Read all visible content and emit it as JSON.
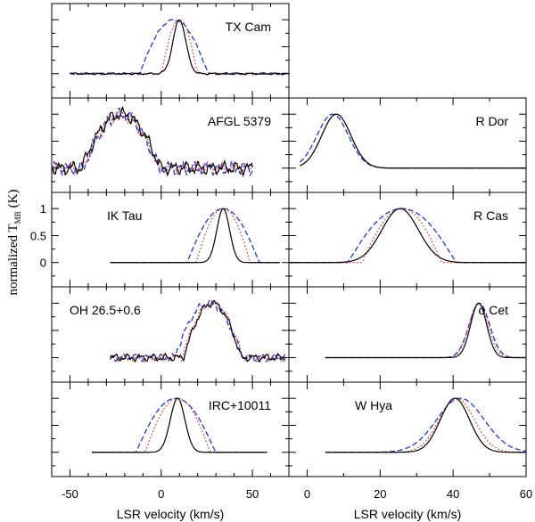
{
  "chart_data": {
    "type": "line",
    "y_axis_title": "normalized T",
    "y_axis_subscript": "MB",
    "y_axis_unit": "(K)",
    "columns": [
      {
        "name": "left",
        "xlabel": "LSR velocity (km/s)",
        "xlim": [
          -60,
          70
        ],
        "xticks_major": [
          -50,
          0,
          50
        ],
        "xticks_minor": [
          -40,
          -30,
          -20,
          -10,
          10,
          20,
          30,
          40,
          60
        ],
        "xtick_labels": [
          "-50",
          "0",
          "50"
        ]
      },
      {
        "name": "right",
        "xlabel": "LSR velocity (km/s)",
        "xlim": [
          -5,
          60
        ],
        "xticks_major": [
          0,
          20,
          40,
          60
        ],
        "xticks_minor": [
          10,
          30,
          50
        ],
        "xtick_labels": [
          "0",
          "20",
          "40",
          "60"
        ]
      }
    ],
    "ylim": [
      -0.45,
      1.3
    ],
    "yticks": [
      0,
      0.5,
      1
    ],
    "ytick_labels": [
      "0",
      "0.5",
      "1"
    ],
    "series_styles": [
      {
        "name": "solid",
        "color": "#000000"
      },
      {
        "name": "dotted",
        "color": "#e8201a"
      },
      {
        "name": "dashed",
        "color": "#1f35d6"
      }
    ],
    "panels": [
      {
        "label": "TX Cam",
        "col": 0,
        "row": 0,
        "show_y_labels": false,
        "vrange": [
          -50,
          70
        ],
        "noise": 0.02,
        "solid": {
          "center": 10,
          "width": 3.5,
          "shape": "gauss"
        },
        "dotted": {
          "center": 10,
          "width": 10,
          "shape": "para"
        },
        "dashed": {
          "center": 7,
          "width": 19,
          "shape": "para"
        }
      },
      {
        "label": "AFGL 5379",
        "col": 0,
        "row": 1,
        "show_y_labels": false,
        "vrange": [
          -60,
          50
        ],
        "noise": 0.14,
        "solid": {
          "center": -22,
          "width": 22,
          "shape": "para"
        },
        "dotted": {
          "center": -22,
          "width": 21,
          "shape": "para"
        },
        "dashed": {
          "center": -22,
          "width": 21,
          "shape": "para"
        }
      },
      {
        "label": "R Dor",
        "col": 1,
        "row": 1,
        "show_y_labels": false,
        "vrange": [
          -2,
          60
        ],
        "noise": 0.0,
        "solid": {
          "center": 8,
          "width": 4,
          "shape": "gauss"
        },
        "dotted": {
          "center": 8,
          "width": 4,
          "shape": "gauss"
        },
        "dashed": {
          "center": 7,
          "width": 4.3,
          "shape": "gauss"
        }
      },
      {
        "label": "IK Tau",
        "col": 0,
        "row": 2,
        "show_y_labels": true,
        "vrange": [
          -28,
          65
        ],
        "noise": 0.0,
        "solid": {
          "center": 34,
          "width": 3.5,
          "shape": "gauss"
        },
        "dotted": {
          "center": 34,
          "width": 15,
          "shape": "para"
        },
        "dashed": {
          "center": 34,
          "width": 20,
          "shape": "para"
        }
      },
      {
        "label": "R Cas",
        "col": 1,
        "row": 2,
        "show_y_labels": false,
        "vrange": [
          -5,
          60
        ],
        "noise": 0.0,
        "solid": {
          "center": 25.5,
          "width": 5,
          "shape": "gauss"
        },
        "dotted": {
          "center": 26,
          "width": 11,
          "shape": "para"
        },
        "dashed": {
          "center": 26,
          "width": 15,
          "shape": "para"
        }
      },
      {
        "label": "OH 26.5+0.6",
        "col": 0,
        "row": 3,
        "show_y_labels": false,
        "vrange": [
          -28,
          68
        ],
        "noise": 0.08,
        "solid": {
          "center": 28,
          "width": 16,
          "shape": "para"
        },
        "dotted": {
          "center": 28,
          "width": 17,
          "shape": "para"
        },
        "dashed": {
          "center": 26,
          "width": 19,
          "shape": "para"
        }
      },
      {
        "label": "o Cet",
        "col": 1,
        "row": 3,
        "show_y_labels": false,
        "vrange": [
          5,
          60
        ],
        "noise": 0.0,
        "solid": {
          "center": 47,
          "width": 2.2,
          "shape": "gauss"
        },
        "dotted": {
          "center": 47,
          "width": 2.6,
          "shape": "gauss"
        },
        "dashed": {
          "center": 47.2,
          "width": 2.8,
          "shape": "gauss"
        }
      },
      {
        "label": "IRC+10011",
        "col": 0,
        "row": 4,
        "show_y_labels": false,
        "vrange": [
          -38,
          58
        ],
        "noise": 0.0,
        "solid": {
          "center": 9,
          "width": 4,
          "shape": "gauss"
        },
        "dotted": {
          "center": 9,
          "width": 18,
          "shape": "para"
        },
        "dashed": {
          "center": 8,
          "width": 22,
          "shape": "para"
        }
      },
      {
        "label": "W Hya",
        "col": 1,
        "row": 4,
        "show_y_labels": false,
        "vrange": [
          5,
          60
        ],
        "noise": 0.0,
        "solid": {
          "center": 40.5,
          "width": 4,
          "shape": "gauss"
        },
        "dotted": {
          "center": 41,
          "width": 4.8,
          "shape": "gauss"
        },
        "dashed": {
          "center": 42,
          "width": 6.5,
          "shape": "gauss"
        }
      }
    ]
  }
}
